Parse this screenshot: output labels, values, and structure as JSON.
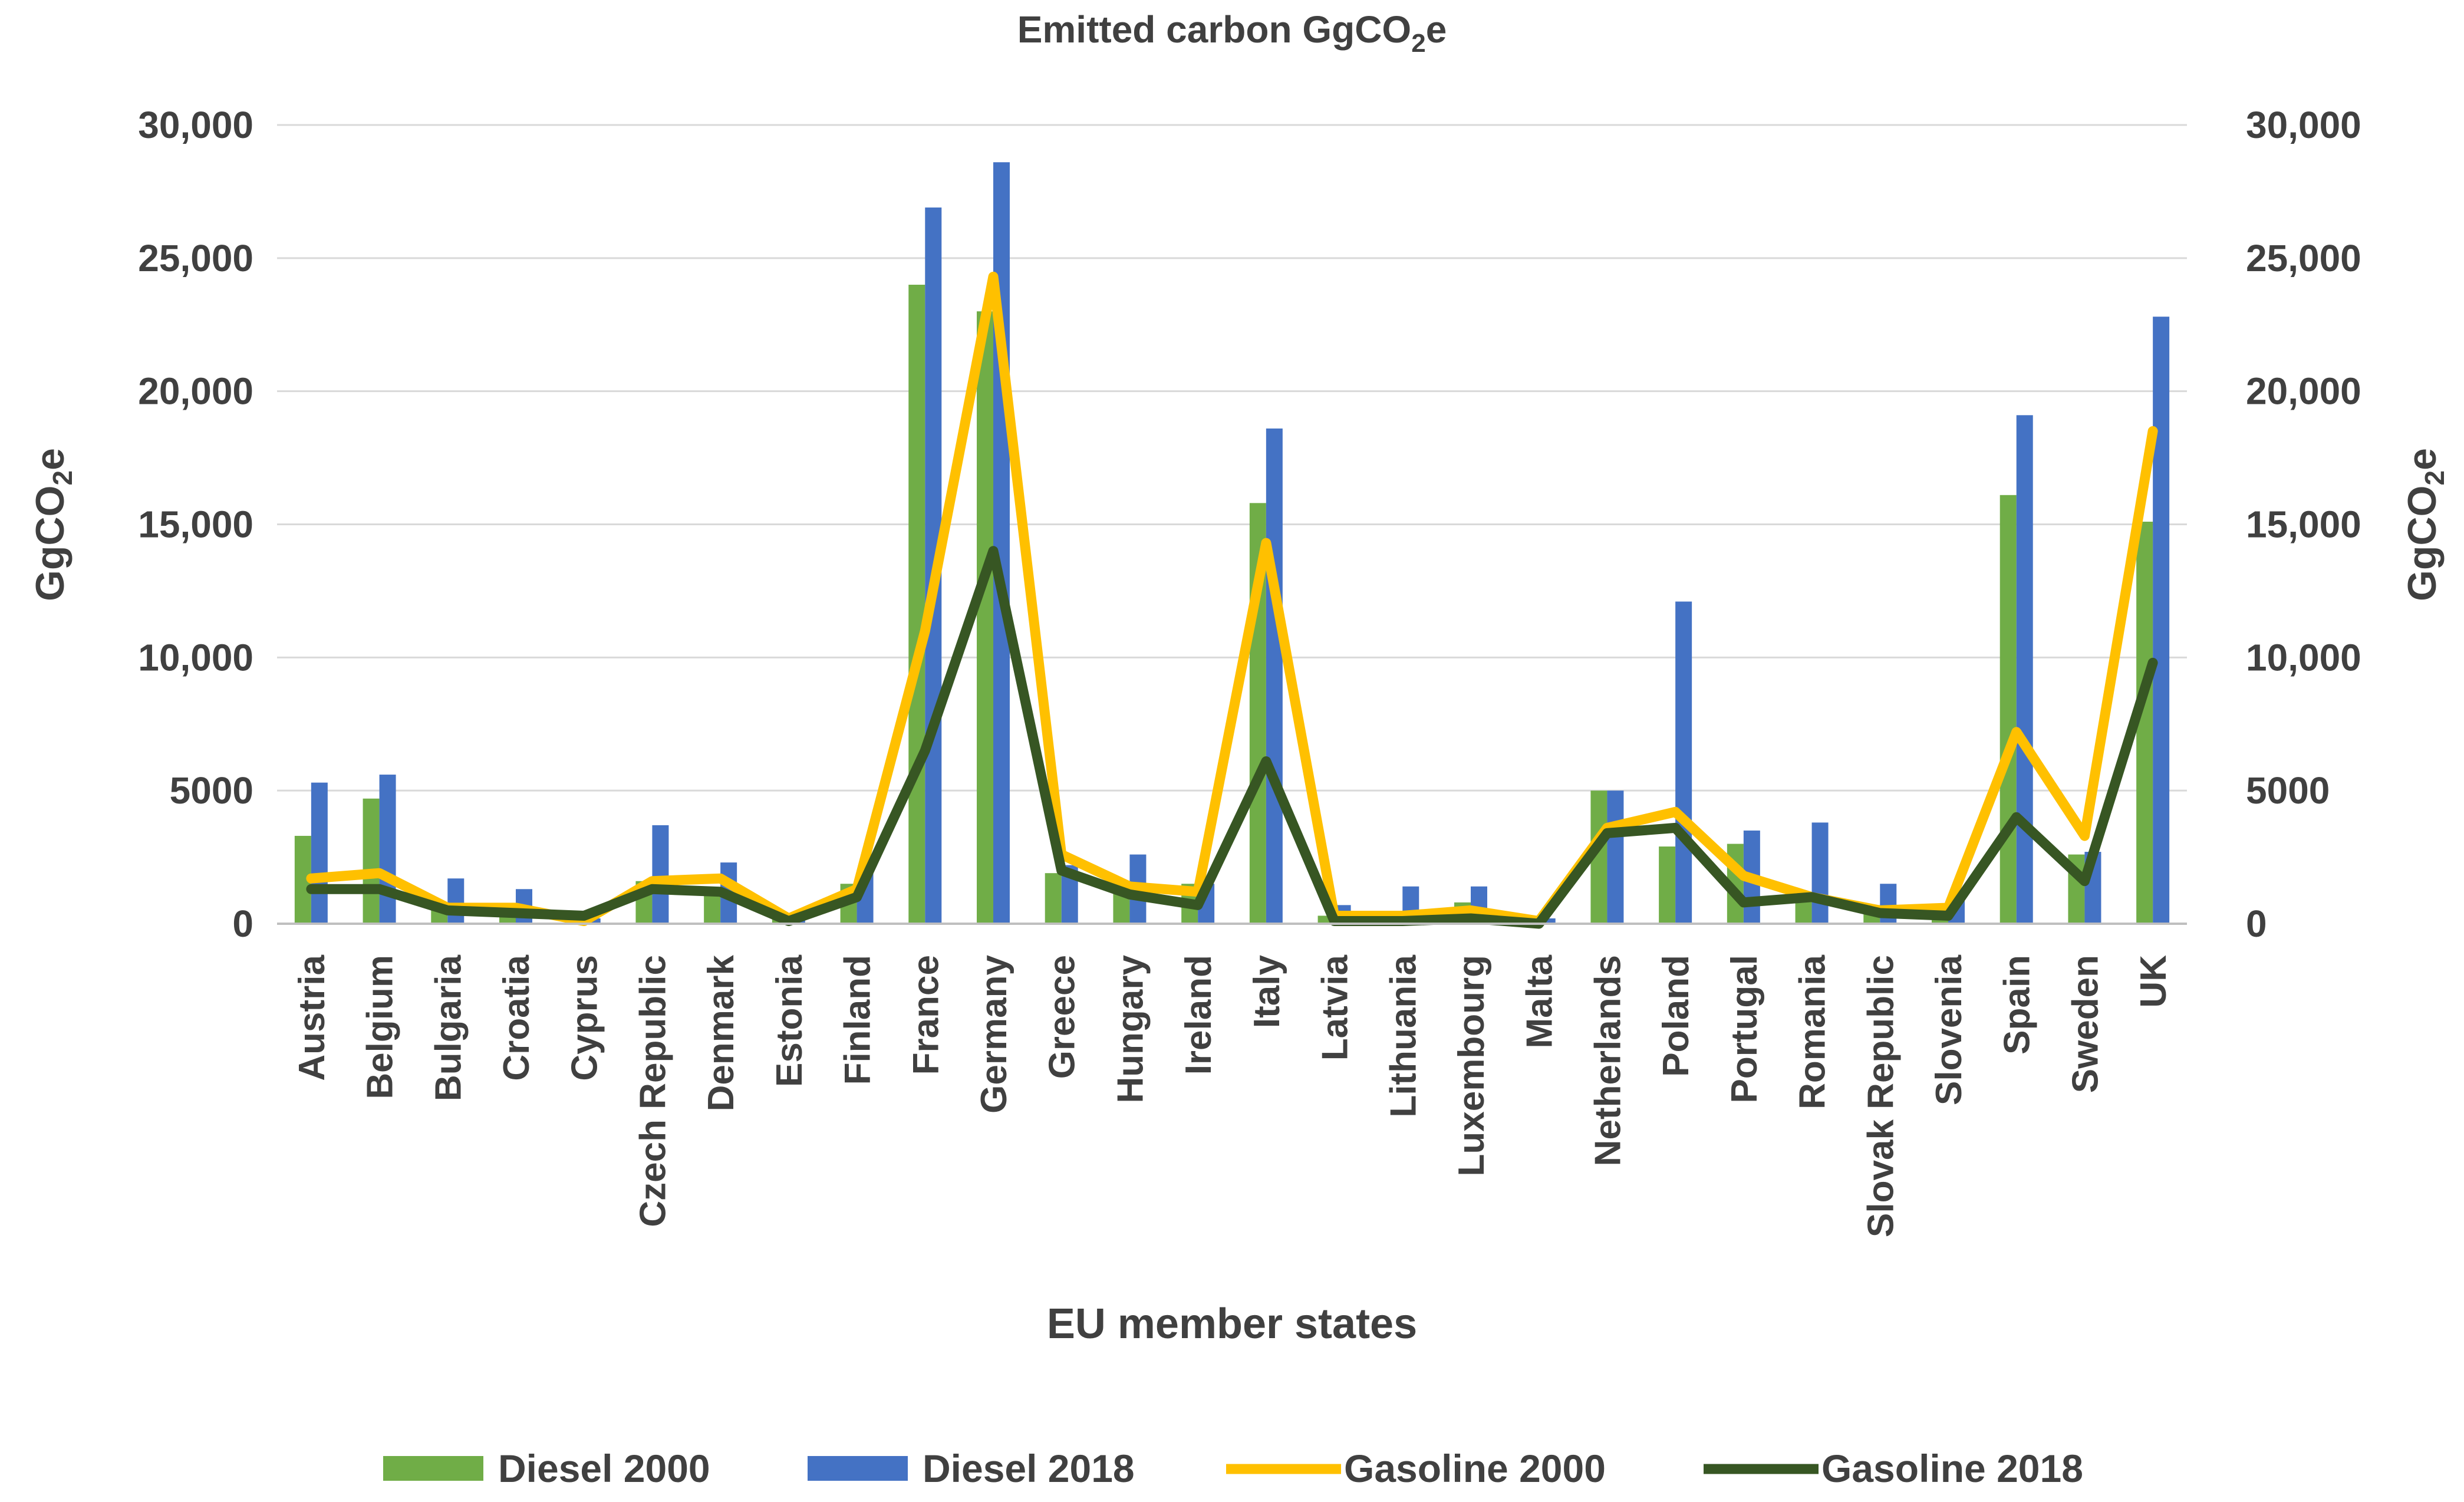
{
  "chart_data": {
    "type": "bar+line",
    "title": "Emitted carbon GgCO",
    "title_sub": "2",
    "title_suffix": "e",
    "xlabel": "EU member states",
    "ylabel_left": {
      "main": "GgCO",
      "sub": "2",
      "suffix": "e"
    },
    "ylabel_right": {
      "main": "GgCO",
      "sub": "2",
      "suffix": "e"
    },
    "ylim": [
      0,
      30000
    ],
    "yticks": [
      {
        "value": 0,
        "label": "0"
      },
      {
        "value": 5000,
        "label": "5000"
      },
      {
        "value": 10000,
        "label": "10,000"
      },
      {
        "value": 15000,
        "label": "15,000"
      },
      {
        "value": 20000,
        "label": "20,000"
      },
      {
        "value": 25000,
        "label": "25,000"
      },
      {
        "value": 30000,
        "label": "30,000"
      }
    ],
    "categories": [
      "Austria",
      "Belgium",
      "Bulgaria",
      "Croatia",
      "Cyprus",
      "Czech Republic",
      "Denmark",
      "Estonia",
      "Finland",
      "France",
      "Germany",
      "Greece",
      "Hungary",
      "Ireland",
      "Italy",
      "Latvia",
      "Lithuania",
      "Luxembourg",
      "Malta",
      "Netherlands",
      "Poland",
      "Portugal",
      "Romania",
      "Slovak Republic",
      "Slovenia",
      "Spain",
      "Sweden",
      "UK"
    ],
    "bar_series": [
      {
        "name": "Diesel 2000",
        "color": "#70ad47",
        "values": [
          3300,
          4700,
          500,
          600,
          300,
          1600,
          1300,
          200,
          1500,
          24000,
          23000,
          1900,
          1200,
          1500,
          15800,
          300,
          400,
          800,
          100,
          5000,
          2900,
          3000,
          1000,
          700,
          600,
          16100,
          2600,
          15100
        ]
      },
      {
        "name": "Diesel 2018",
        "color": "#4472c4",
        "values": [
          5300,
          5600,
          1700,
          1300,
          200,
          3700,
          2300,
          300,
          1900,
          26900,
          28600,
          2200,
          2600,
          1500,
          18600,
          700,
          1400,
          1400,
          200,
          5000,
          12100,
          3500,
          3800,
          1500,
          1000,
          19100,
          2700,
          22800
        ]
      }
    ],
    "line_series": [
      {
        "name": "Gasoline 2000",
        "color": "#ffc000",
        "values": [
          1700,
          1900,
          600,
          600,
          100,
          1600,
          1700,
          200,
          1300,
          11000,
          24300,
          2600,
          1400,
          1200,
          14300,
          300,
          300,
          500,
          100,
          3600,
          4200,
          1800,
          1000,
          500,
          600,
          7200,
          3300,
          18500
        ]
      },
      {
        "name": "Gasoline 2018",
        "color": "#375623",
        "values": [
          1300,
          1300,
          500,
          400,
          300,
          1300,
          1200,
          100,
          1000,
          6500,
          14000,
          2000,
          1100,
          700,
          6100,
          100,
          100,
          200,
          0,
          3400,
          3600,
          800,
          1000,
          400,
          300,
          4000,
          1600,
          9800
        ]
      }
    ],
    "legend": [
      "Diesel 2000",
      "Diesel 2018",
      "Gasoline 2000",
      "Gasoline 2018"
    ],
    "legend_position": "bottom",
    "grid": true
  }
}
